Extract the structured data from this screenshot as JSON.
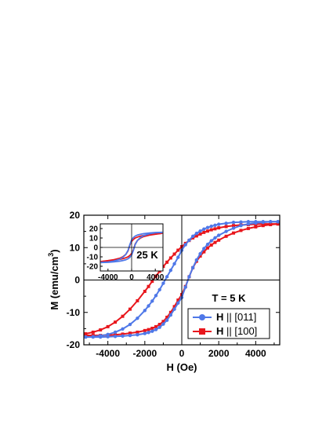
{
  "chart_data": {
    "type": "line",
    "xlabel": "H (Oe)",
    "ylabel_main": "M (emu/cm",
    "ylabel_sup": "3",
    "ylabel_close": ")",
    "xlim": [
      -5300,
      5300
    ],
    "ylim": [
      -20,
      20
    ],
    "x_ticks": [
      -4000,
      -2000,
      0,
      2000,
      4000
    ],
    "x_tick_labels": [
      "-4000",
      "-2000",
      "0",
      "2000",
      "4000"
    ],
    "y_ticks": [
      -20,
      -10,
      0,
      10,
      20
    ],
    "y_tick_labels": [
      "-20",
      "-10",
      "0",
      "10",
      "20"
    ],
    "annotation": "T = 5 K",
    "legend": {
      "placement": "bottom-right",
      "entries": [
        {
          "bold": "H",
          "rest": " || [011]"
        },
        {
          "bold": "H",
          "rest": " || [100]"
        }
      ]
    },
    "series": [
      {
        "name": "H || [011]",
        "color": "#4f78e8",
        "marker": "circle",
        "x": [
          -5200,
          -4800,
          -4400,
          -4000,
          -3600,
          -3200,
          -2800,
          -2400,
          -2000,
          -1800,
          -1600,
          -1400,
          -1200,
          -1000,
          -800,
          -600,
          -400,
          -200,
          0,
          200,
          400,
          600,
          800,
          1000,
          1200,
          1400,
          1600,
          1800,
          2000,
          2400,
          2800,
          3200,
          3600,
          4000,
          4400,
          4800,
          5200
        ],
        "upper": [
          -17.6,
          -17.5,
          -17.2,
          -16.8,
          -16.1,
          -15.1,
          -13.7,
          -11.8,
          -9.4,
          -8.0,
          -6.5,
          -4.8,
          -3.0,
          -1.0,
          1.0,
          3.0,
          5.0,
          7.0,
          9.2,
          10.9,
          12.3,
          13.5,
          14.4,
          15.1,
          15.7,
          16.2,
          16.6,
          16.9,
          17.2,
          17.5,
          17.8,
          17.9,
          18.0,
          18.0,
          18.0,
          18.0,
          18.0
        ],
        "lower": [
          -17.6,
          -17.6,
          -17.6,
          -17.5,
          -17.4,
          -17.3,
          -17.1,
          -16.9,
          -16.5,
          -16.2,
          -15.8,
          -15.3,
          -14.6,
          -13.6,
          -12.4,
          -10.8,
          -9.0,
          -7.1,
          -5.4,
          -2.2,
          1.0,
          3.8,
          6.2,
          8.1,
          9.7,
          11.0,
          12.1,
          13.0,
          13.8,
          15.0,
          16.0,
          16.8,
          17.3,
          17.6,
          17.8,
          18.0,
          18.0
        ]
      },
      {
        "name": "H || [100]",
        "color": "#e8161c",
        "marker": "square",
        "x": [
          -5200,
          -4800,
          -4400,
          -4000,
          -3600,
          -3200,
          -2800,
          -2400,
          -2000,
          -1800,
          -1600,
          -1400,
          -1200,
          -1000,
          -800,
          -600,
          -400,
          -200,
          0,
          200,
          400,
          600,
          800,
          1000,
          1200,
          1400,
          1600,
          1800,
          2000,
          2400,
          2800,
          3200,
          3600,
          4000,
          4400,
          4800,
          5200
        ],
        "upper": [
          -16.6,
          -16.1,
          -15.4,
          -14.4,
          -13.0,
          -11.2,
          -9.0,
          -6.4,
          -3.5,
          -2.0,
          -0.4,
          1.2,
          2.7,
          4.2,
          5.5,
          6.8,
          8.0,
          9.2,
          10.3,
          11.3,
          12.2,
          13.0,
          13.6,
          14.2,
          14.7,
          15.1,
          15.5,
          15.8,
          16.1,
          16.5,
          16.8,
          17.0,
          17.1,
          17.2,
          17.3,
          17.3,
          17.3
        ],
        "lower": [
          -17.1,
          -17.1,
          -17.1,
          -17.0,
          -16.9,
          -16.7,
          -16.4,
          -16.1,
          -15.6,
          -15.3,
          -14.9,
          -14.4,
          -13.7,
          -12.8,
          -11.5,
          -10.0,
          -8.2,
          -6.2,
          -4.5,
          -2.0,
          1.0,
          3.8,
          5.8,
          7.4,
          8.7,
          9.9,
          10.8,
          11.6,
          12.3,
          13.5,
          14.5,
          15.3,
          15.9,
          16.4,
          16.8,
          17.1,
          17.3
        ]
      }
    ],
    "inset": {
      "annotation": "25 K",
      "xlim": [
        -5300,
        5300
      ],
      "ylim": [
        -25,
        25
      ],
      "x_ticks": [
        -4000,
        0,
        4000
      ],
      "x_tick_labels": [
        "-4000",
        "0",
        "4000"
      ],
      "y_ticks": [
        -20,
        -10,
        0,
        10,
        20
      ],
      "y_tick_labels": [
        "-20",
        "-10",
        "0",
        "10",
        "20"
      ],
      "series": [
        {
          "name": "H || [011]",
          "color": "#4f78e8",
          "x": [
            -5200,
            -4000,
            -3000,
            -2000,
            -1500,
            -1000,
            -600,
            -300,
            0,
            300,
            600,
            1000,
            1500,
            2000,
            3000,
            4000,
            5200
          ],
          "upper": [
            -16.0,
            -15.5,
            -14.5,
            -12.5,
            -10.5,
            -7.5,
            -3.0,
            3.0,
            8.0,
            10.5,
            12.0,
            13.2,
            14.0,
            14.6,
            15.3,
            15.8,
            16.0
          ],
          "lower": [
            -16.0,
            -15.8,
            -15.3,
            -14.6,
            -14.0,
            -13.2,
            -12.0,
            -10.5,
            -8.0,
            -3.0,
            3.0,
            7.5,
            10.5,
            12.5,
            14.5,
            15.5,
            16.0
          ]
        },
        {
          "name": "H || [100]",
          "color": "#e8161c",
          "x": [
            -5200,
            -4000,
            -3000,
            -2000,
            -1500,
            -1000,
            -600,
            -300,
            0,
            300,
            600,
            1000,
            1500,
            2000,
            3000,
            4000,
            5200
          ],
          "upper": [
            -15.0,
            -14.0,
            -13.0,
            -11.5,
            -10.0,
            -7.5,
            -3.5,
            2.5,
            6.5,
            8.5,
            10.0,
            11.0,
            12.0,
            12.7,
            13.7,
            14.3,
            15.0
          ],
          "lower": [
            -15.0,
            -14.3,
            -13.7,
            -12.7,
            -12.0,
            -11.0,
            -10.0,
            -8.5,
            -6.5,
            -2.5,
            3.5,
            7.5,
            10.0,
            11.5,
            13.0,
            14.0,
            15.0
          ]
        }
      ]
    }
  }
}
